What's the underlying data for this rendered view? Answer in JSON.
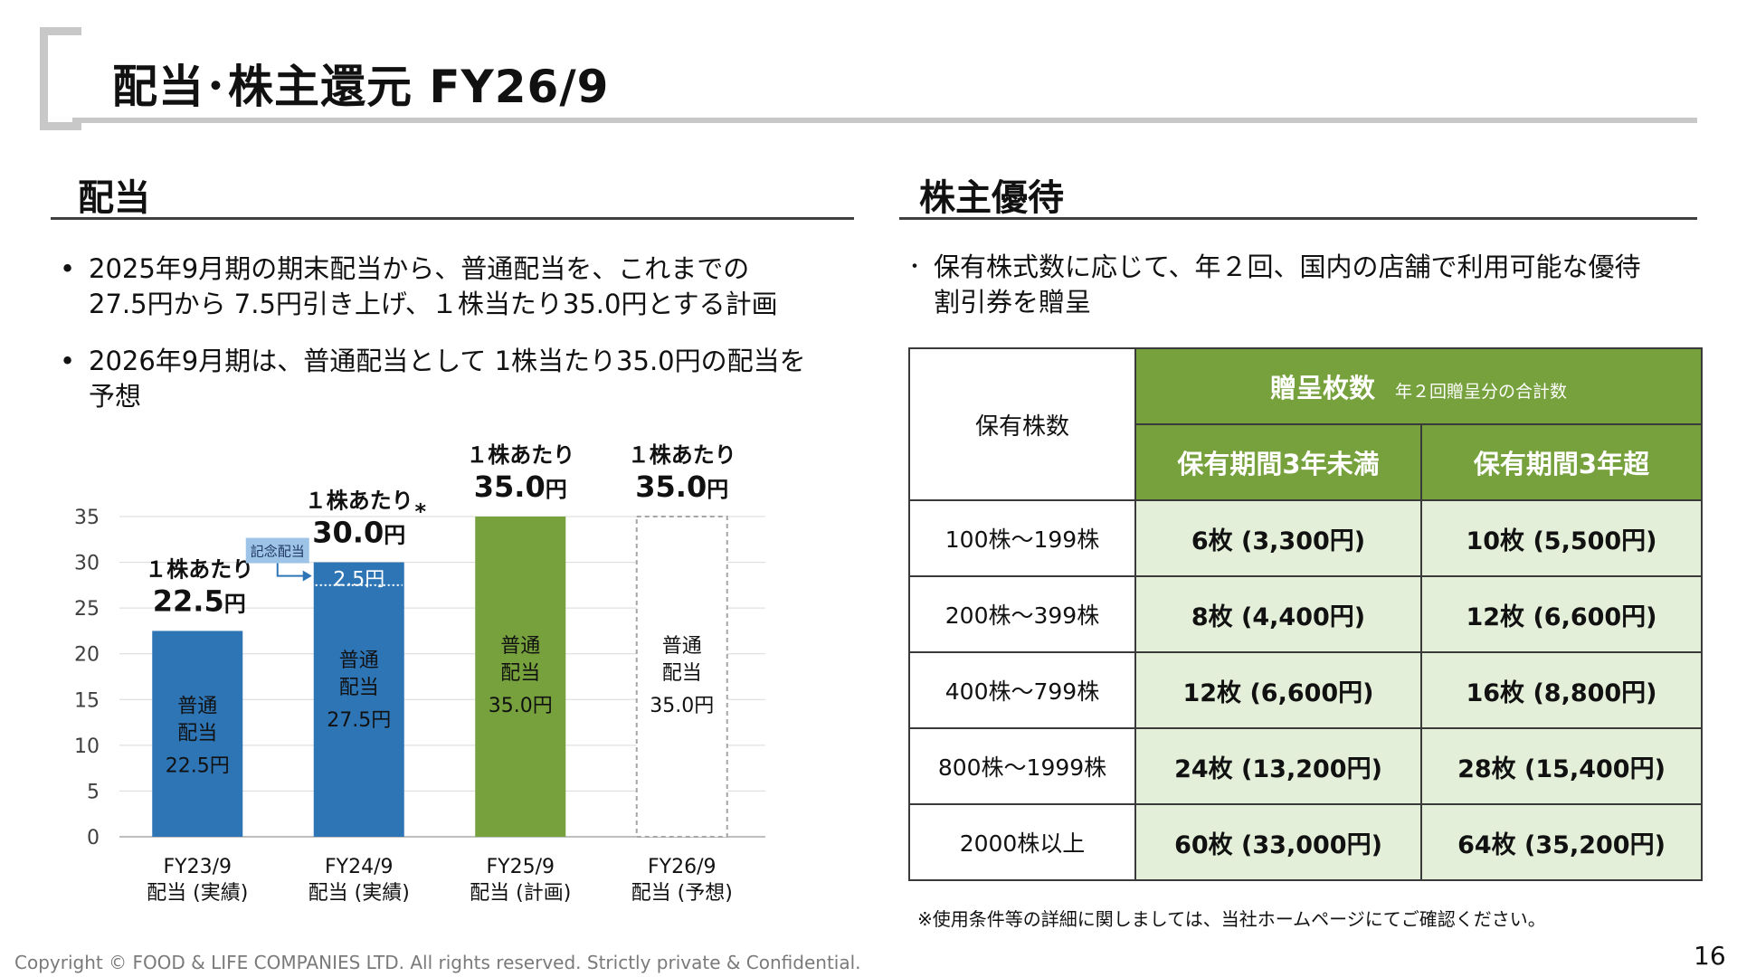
{
  "title": "配当･株主還元 FY26/9",
  "dividend": {
    "heading": "配当",
    "bullets": [
      [
        "2025年9月期の期末配当から、普通配当を、これまでの",
        "27.5円から 7.5円引き上げ、１株当たり35.0円とする計画"
      ],
      [
        "2026年9月期は、普通配当として 1株当たり35.0円の配当を",
        "予想"
      ]
    ]
  },
  "chart_data": {
    "type": "bar",
    "categories": [
      "FY23/9 配当 (実績)",
      "FY24/9 配当 (実績)",
      "FY25/9 配当 (計画)",
      "FY26/9 配当 (予想)"
    ],
    "category_lines": [
      [
        "FY23/9",
        "配当 (実績)"
      ],
      [
        "FY24/9",
        "配当 (実績)"
      ],
      [
        "FY25/9",
        "配当 (計画)"
      ],
      [
        "FY26/9",
        "配当 (予想)"
      ]
    ],
    "series": [
      {
        "name": "普通配当",
        "values": [
          22.5,
          27.5,
          35.0,
          35.0
        ]
      },
      {
        "name": "記念配当",
        "values": [
          0,
          2.5,
          0,
          0
        ]
      }
    ],
    "bar_labels": [
      [
        "普通",
        "配当",
        "22.5円"
      ],
      [
        "普通",
        "配当",
        "27.5円"
      ],
      [
        "普通",
        "配当",
        "35.0円"
      ],
      [
        "普通",
        "配当",
        "35.0円"
      ]
    ],
    "commemorative_label": "2.5円",
    "commemorative_callout": "記念配当",
    "top_labels": [
      {
        "prefix": "１株あたり",
        "value": "22.5",
        "unit": "円",
        "mark": ""
      },
      {
        "prefix": "１株あたり",
        "value": "30.0",
        "unit": "円",
        "mark": "*"
      },
      {
        "prefix": "１株あたり",
        "value": "35.0",
        "unit": "円",
        "mark": ""
      },
      {
        "prefix": "１株あたり",
        "value": "35.0",
        "unit": "円",
        "mark": ""
      }
    ],
    "bar_styles": [
      "actual",
      "actual",
      "plan",
      "forecast"
    ],
    "colors": {
      "actual": "#2e75b6",
      "plan": "#76a13c",
      "forecast_border": "#a6a6a6",
      "callout": "#9dc3e6"
    },
    "yticks": [
      0,
      5,
      10,
      15,
      20,
      25,
      30,
      35
    ],
    "ylim": [
      0,
      35
    ],
    "grid": true
  },
  "benefits": {
    "heading": "株主優待",
    "bullet": [
      "保有株式数に応じて、年２回、国内の店舗で利用可能な優待",
      "割引券を贈呈"
    ],
    "table": {
      "corner": "保有株数",
      "group_header": "贈呈枚数",
      "group_sub": "年２回贈呈分の合計数",
      "col_headers": [
        "保有期間3年未満",
        "保有期間3年超"
      ],
      "rows": [
        {
          "shares": "100株～199株",
          "under3": "6枚 (3,300円)",
          "over3": "10枚 (5,500円)"
        },
        {
          "shares": "200株～399株",
          "under3": "8枚 (4,400円)",
          "over3": "12枚 (6,600円)"
        },
        {
          "shares": "400株～799株",
          "under3": "12枚 (6,600円)",
          "over3": "16枚 (8,800円)"
        },
        {
          "shares": "800株～1999株",
          "under3": "24枚 (13,200円)",
          "over3": "28枚 (15,400円)"
        },
        {
          "shares": "2000株以上",
          "under3": "60枚 (33,000円)",
          "over3": "64枚 (35,200円)"
        }
      ],
      "header_color": "#76a13c",
      "cell_color": "#e3efd9"
    },
    "note": "※使用条件等の詳細に関しましては、当社ホームページにてご確認ください。"
  },
  "footer": {
    "copyright": "Copyright © FOOD & LIFE COMPANIES LTD. All rights reserved. Strictly private & Confidential.",
    "page": "16"
  }
}
